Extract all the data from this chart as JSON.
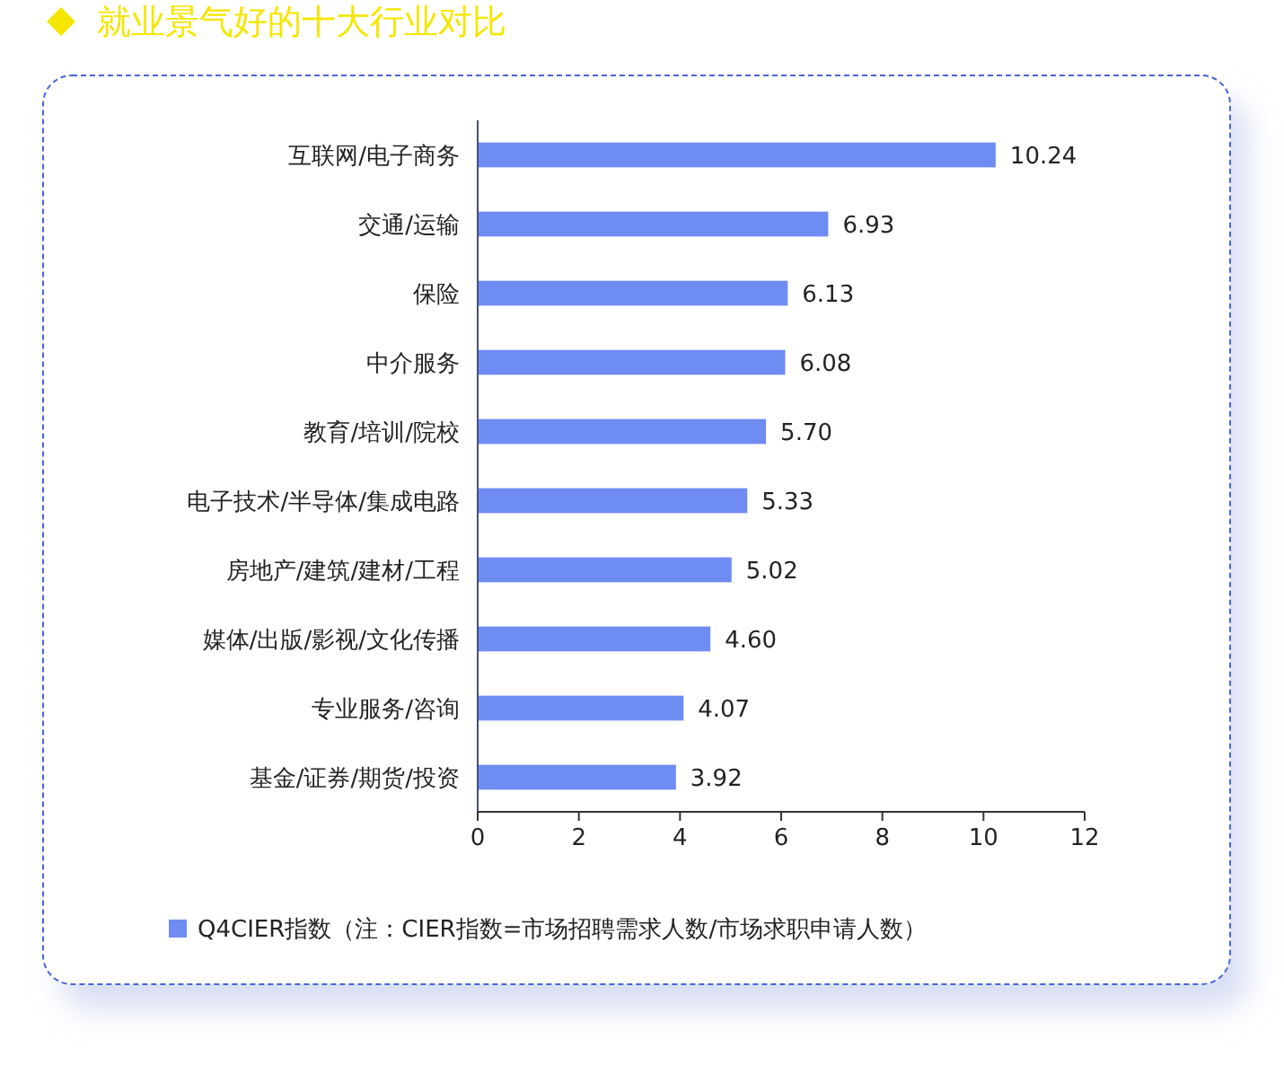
{
  "chart_data": {
    "type": "bar",
    "orientation": "horizontal",
    "title": "就业景气好的十大行业对比",
    "categories": [
      "互联网/电子商务",
      "交通/运输",
      "保险",
      "中介服务",
      "教育/培训/院校",
      "电子技术/半导体/集成电路",
      "房地产/建筑/建材/工程",
      "媒体/出版/影视/文化传播",
      "专业服务/咨询",
      "基金/证券/期货/投资"
    ],
    "series": [
      {
        "name": "Q4CIER指数（注：CIER指数=市场招聘需求人数/市场求职申请人数）",
        "color": "#6f8cf3",
        "values": [
          10.24,
          6.93,
          6.13,
          6.08,
          5.7,
          5.33,
          5.02,
          4.6,
          4.07,
          3.92
        ],
        "value_labels": [
          "10.24",
          "6.93",
          "6.13",
          "6.08",
          "5.70",
          "5.33",
          "5.02",
          "4.60",
          "4.07",
          "3.92"
        ]
      }
    ],
    "xlim": [
      0,
      12
    ],
    "xticks": [
      0,
      2,
      4,
      6,
      8,
      10,
      12
    ],
    "grid": false,
    "legend": "bottom left"
  }
}
